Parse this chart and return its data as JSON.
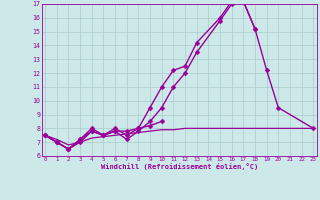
{
  "xlabel": "Windchill (Refroidissement éolien,°C)",
  "bg_color": "#cce8e8",
  "grid_color": "#aacccc",
  "line_color": "#990099",
  "xlim_min": 0,
  "xlim_max": 23,
  "ylim_min": 6,
  "ylim_max": 17,
  "xticks": [
    0,
    1,
    2,
    3,
    4,
    5,
    6,
    7,
    8,
    9,
    10,
    11,
    12,
    13,
    14,
    15,
    16,
    17,
    18,
    19,
    20,
    21,
    22,
    23
  ],
  "yticks": [
    6,
    7,
    8,
    9,
    10,
    11,
    12,
    13,
    14,
    15,
    16,
    17
  ],
  "series": [
    {
      "name": "line_high",
      "x": [
        0,
        1,
        2,
        3,
        4,
        5,
        6,
        7,
        8,
        9,
        10,
        11,
        12,
        13,
        15,
        16,
        17,
        18
      ],
      "y": [
        7.5,
        7.0,
        6.5,
        7.2,
        8.0,
        7.5,
        8.0,
        7.5,
        8.0,
        9.5,
        11.0,
        12.2,
        12.5,
        14.2,
        16.0,
        17.2,
        17.2,
        15.2
      ],
      "marker": "D",
      "ms": 2.5,
      "lw": 1.0
    },
    {
      "name": "line_mid",
      "x": [
        0,
        1,
        2,
        3,
        4,
        5,
        6,
        7,
        8,
        9,
        10,
        11,
        12,
        13,
        15,
        16,
        17,
        18,
        19,
        20,
        23
      ],
      "y": [
        7.5,
        7.0,
        6.5,
        7.2,
        7.8,
        7.5,
        7.8,
        7.2,
        7.8,
        8.5,
        9.5,
        11.0,
        12.0,
        13.5,
        15.8,
        17.0,
        17.2,
        15.2,
        12.2,
        9.5,
        8.0
      ],
      "marker": "D",
      "ms": 2.5,
      "lw": 1.0
    },
    {
      "name": "line_low",
      "x": [
        0,
        1,
        2,
        3,
        4,
        5,
        6,
        7,
        8,
        9,
        10
      ],
      "y": [
        7.5,
        7.0,
        6.5,
        7.0,
        7.8,
        7.5,
        7.8,
        7.8,
        8.0,
        8.2,
        8.5
      ],
      "marker": "D",
      "ms": 2.5,
      "lw": 1.0
    },
    {
      "name": "flat_line",
      "x": [
        0,
        1,
        2,
        3,
        4,
        5,
        6,
        7,
        8,
        9,
        10,
        11,
        12,
        13,
        14,
        15,
        16,
        17,
        18,
        19,
        20,
        21,
        22,
        23
      ],
      "y": [
        7.5,
        7.2,
        6.8,
        7.0,
        7.3,
        7.4,
        7.5,
        7.6,
        7.7,
        7.8,
        7.9,
        7.9,
        8.0,
        8.0,
        8.0,
        8.0,
        8.0,
        8.0,
        8.0,
        8.0,
        8.0,
        8.0,
        8.0,
        8.0
      ],
      "marker": null,
      "ms": 0,
      "lw": 0.9,
      "dashed": false
    }
  ]
}
